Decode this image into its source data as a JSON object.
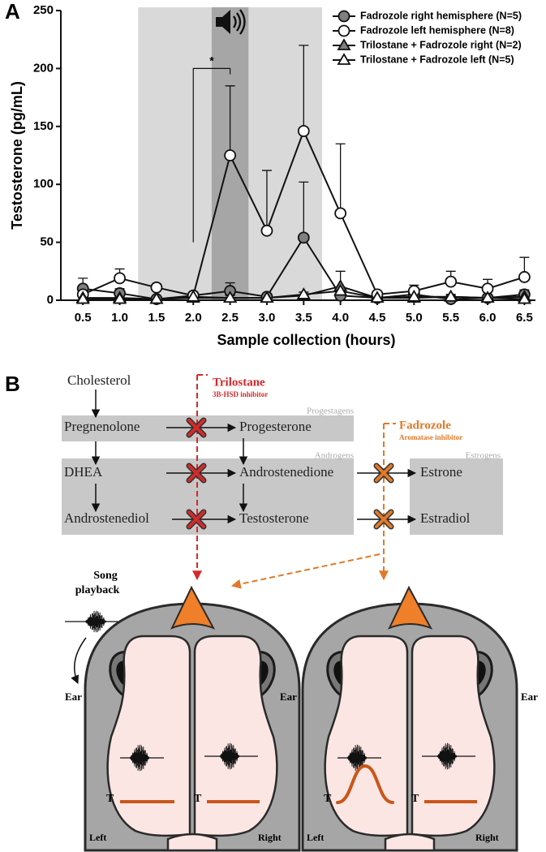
{
  "panel_labels": [
    "A",
    "B"
  ],
  "chart_data": {
    "type": "line",
    "x": [
      0.5,
      1,
      1.5,
      2,
      2.5,
      3,
      3.5,
      4,
      4.5,
      5,
      5.5,
      6,
      6.5
    ],
    "xlim": [
      0.2,
      6.65
    ],
    "xticks": [
      0.5,
      {
        "value": 1,
        "label": "1.0"
      },
      1.5,
      {
        "value": 2,
        "label": "2.0"
      },
      2.5,
      {
        "value": 3,
        "label": "3.0"
      },
      3.5,
      {
        "value": 4,
        "label": "4.0"
      },
      4.5,
      {
        "value": 5,
        "label": "5.0"
      },
      5.5,
      {
        "value": 6,
        "label": "6.0"
      },
      6.5
    ],
    "ylim": [
      0,
      250
    ],
    "yticks": [
      0,
      50,
      100,
      150,
      200,
      250
    ],
    "x_label": "Sample collection (hours)",
    "y_label": "Testosterone (pg/mL)",
    "legend": "upper right",
    "shaded_regions": [
      {
        "x": [
          1.25,
          3.75
        ],
        "color": "#d9d9d9"
      },
      {
        "x": [
          2.25,
          2.75
        ],
        "color": "#a6a6a6"
      }
    ],
    "significance": {
      "label": "*",
      "between": [
        2,
        2.5
      ]
    },
    "series": [
      {
        "name": "Fadrozole right hemisphere (N=5)",
        "marker": "circle",
        "color": "#7f7f7f",
        "values": [
          10,
          6,
          1,
          4,
          8,
          3,
          54,
          4,
          2,
          5,
          1,
          2,
          5
        ],
        "errors": [
          9,
          4,
          2,
          3,
          7,
          2,
          48,
          4,
          2,
          3,
          2,
          2,
          4
        ]
      },
      {
        "name": "Fadrozole left hemisphere (N=8)",
        "marker": "circle",
        "color": "#ffffff",
        "values": [
          5,
          19,
          11,
          4,
          125,
          60,
          146,
          75,
          5,
          8,
          16,
          10,
          20
        ],
        "errors": [
          6,
          8,
          3,
          3,
          60,
          52,
          74,
          60,
          2,
          5,
          9,
          8,
          17
        ]
      },
      {
        "name": "Trilostane + Fadrozole right (N=2)",
        "marker": "triangle",
        "color": "#7f7f7f",
        "values": [
          2,
          2,
          1,
          2,
          2,
          2,
          4,
          12,
          2,
          2,
          3,
          2,
          3
        ],
        "errors": [
          3,
          2,
          1,
          2,
          3,
          2,
          3,
          13,
          2,
          2,
          2,
          2,
          2
        ]
      },
      {
        "name": "Trilostane + Fadrozole left (N=5)",
        "marker": "triangle",
        "color": "#ffffff",
        "values": [
          1,
          1,
          1,
          3,
          2,
          2,
          5,
          8,
          2,
          3,
          3,
          2,
          1
        ],
        "errors": [
          3,
          2,
          2,
          2,
          2,
          2,
          2,
          3,
          1,
          2,
          2,
          2,
          2
        ]
      }
    ]
  },
  "diagram": {
    "compounds": [
      "Cholesterol",
      "Pregnenolone",
      "Progesterone",
      "DHEA",
      "Androstenedione",
      "Estrone",
      "Androstenediol",
      "Testosterone",
      "Estradiol"
    ],
    "classes": [
      "Progestagens",
      "Androgens",
      "Estrogens"
    ],
    "inhibitors": [
      {
        "name": "Trilostane",
        "target": "3B-HSD inhibitor",
        "color": "#d42a2a"
      },
      {
        "name": "Fadrozole",
        "target": "Aromatase inhibitor",
        "color": "#e07a2a"
      }
    ],
    "stimulus": [
      "Song",
      "playback"
    ],
    "birds": [
      {
        "ear_labels": [
          "Ear",
          "Ear"
        ],
        "hormone_labels": [
          "T",
          "T"
        ],
        "hemisphere_labels": [
          "Left",
          "Right"
        ]
      },
      {
        "ear_labels": [
          "Ear"
        ],
        "hormone_labels": [
          "T",
          "T"
        ],
        "hemisphere_labels": [
          "Left",
          "Right"
        ]
      }
    ]
  }
}
